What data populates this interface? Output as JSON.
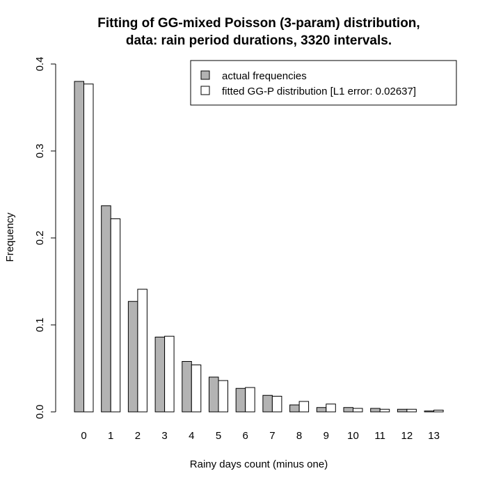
{
  "chart_data": {
    "type": "bar",
    "title_line1": "Fitting of GG-mixed Poisson (3-param) distribution,",
    "title_line2": "data: rain period durations, 3320 intervals.",
    "xlabel": "Rainy days count (minus one)",
    "ylabel": "Frequency",
    "ylim": [
      0,
      0.4
    ],
    "yticks": [
      "0.0",
      "0.1",
      "0.2",
      "0.3",
      "0.4"
    ],
    "categories": [
      "0",
      "1",
      "2",
      "3",
      "4",
      "5",
      "6",
      "7",
      "8",
      "9",
      "10",
      "11",
      "12",
      "13"
    ],
    "series": [
      {
        "name": "actual frequencies",
        "color": "#b3b3b3",
        "values": [
          0.38,
          0.237,
          0.127,
          0.086,
          0.058,
          0.04,
          0.027,
          0.019,
          0.008,
          0.005,
          0.005,
          0.004,
          0.003,
          0.001
        ]
      },
      {
        "name": "fitted GG-P distribution [L1 error: 0.02637]",
        "color": "#ffffff",
        "values": [
          0.377,
          0.222,
          0.141,
          0.087,
          0.054,
          0.036,
          0.028,
          0.018,
          0.012,
          0.009,
          0.004,
          0.003,
          0.003,
          0.002
        ]
      }
    ],
    "grid": false,
    "legend_position": "top-right"
  }
}
